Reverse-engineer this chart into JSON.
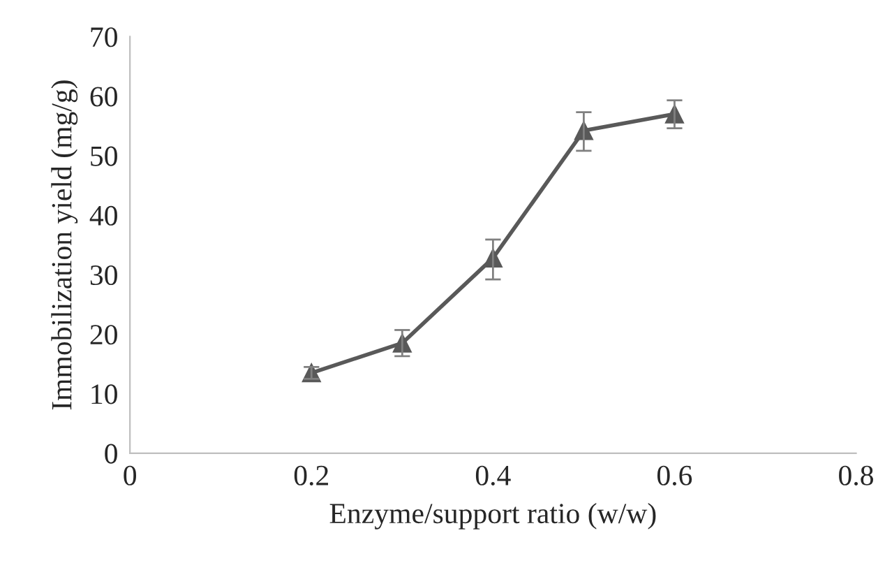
{
  "chart_data": {
    "type": "line",
    "xlabel": "Enzyme/support ratio (w/w)",
    "ylabel": "Immobilization yield (mg/g)",
    "x": [
      0.2,
      0.3,
      0.4,
      0.5,
      0.6
    ],
    "series": [
      {
        "color": "#595959",
        "values": [
          13.5,
          18.5,
          32.8,
          54.2,
          57.0
        ],
        "errors": [
          [
            12.5,
            14.5
          ],
          [
            16.3,
            20.7
          ],
          [
            29.2,
            35.9
          ],
          [
            50.8,
            57.3
          ],
          [
            54.6,
            59.3
          ]
        ]
      }
    ],
    "marker": "triangle",
    "line_style": "solid",
    "xlim": [
      0,
      0.8
    ],
    "xticks": [
      {
        "value": 0,
        "label": "0"
      },
      0.2,
      0.4,
      0.6,
      0.8
    ],
    "ylim": [
      0,
      70
    ],
    "yticks": [
      0,
      10,
      20,
      30,
      40,
      50,
      60,
      70
    ],
    "grid": false,
    "legend": false
  }
}
